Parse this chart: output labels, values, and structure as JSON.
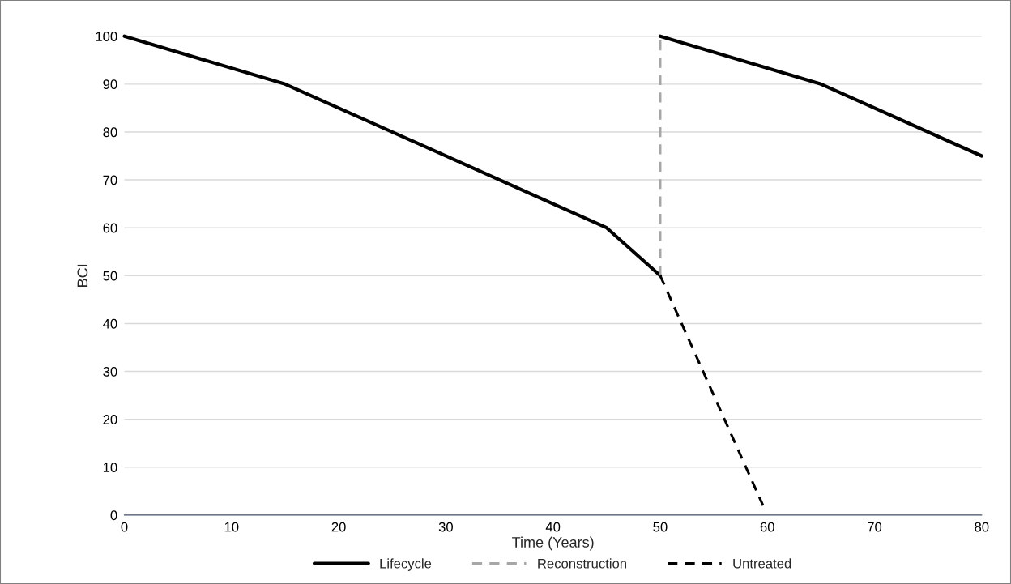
{
  "chart_data": {
    "type": "line",
    "xlabel": "Time (Years)",
    "ylabel": "BCI",
    "xlim": [
      0,
      80
    ],
    "xticks": [
      0,
      10,
      20,
      30,
      40,
      50,
      60,
      70,
      80
    ],
    "ylim": [
      0,
      100
    ],
    "yticks": [
      0,
      10,
      20,
      30,
      40,
      50,
      60,
      70,
      80,
      90,
      100
    ],
    "grid": "y",
    "legend": "bottom",
    "marker": "none",
    "series": [
      {
        "name": "Lifecycle",
        "color": "#000000",
        "line_style": "solid",
        "x": [
          0,
          15,
          45,
          50,
          null,
          50,
          65,
          80
        ],
        "values": [
          100,
          90,
          60,
          50,
          null,
          100,
          90,
          75
        ]
      },
      {
        "name": "Reconstruction",
        "color": "#a6a6a6",
        "line_style": "dashed",
        "x": [
          50,
          50
        ],
        "values": [
          50,
          100
        ]
      },
      {
        "name": "Untreated",
        "color": "#000000",
        "line_style": "dashed",
        "x": [
          50,
          59.6
        ],
        "values": [
          50,
          2
        ]
      }
    ]
  }
}
